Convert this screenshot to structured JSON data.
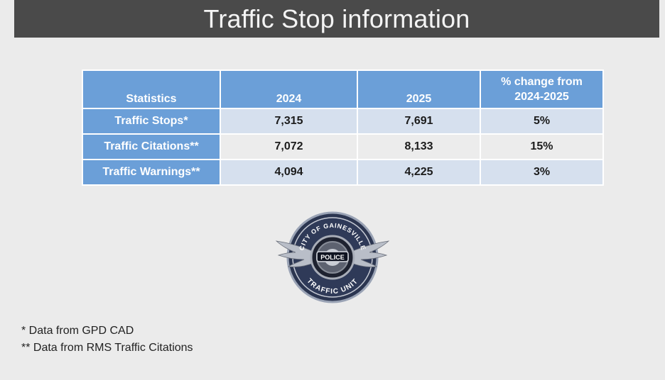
{
  "slide": {
    "title": "Traffic Stop information"
  },
  "table": {
    "headers": [
      "Statistics",
      "2024",
      "2025",
      "% change from 2024-2025"
    ],
    "rows": [
      {
        "label": "Traffic Stops*",
        "y2024": "7,315",
        "y2025": "7,691",
        "change": "5%"
      },
      {
        "label": "Traffic Citations**",
        "y2024": "7,072",
        "y2025": "8,133",
        "change": "15%"
      },
      {
        "label": "Traffic Warnings**",
        "y2024": "4,094",
        "y2025": "4,225",
        "change": "3%"
      }
    ]
  },
  "logo": {
    "top_text": "CITY OF GAINESVILLE",
    "center_text": "POLICE",
    "bottom_text": "TRAFFIC UNIT"
  },
  "footnotes": [
    "* Data from GPD CAD",
    "** Data from RMS Traffic Citations"
  ],
  "colors": {
    "title_bar": "#4a4a4a",
    "header_blue": "#6b9fd8",
    "row_light_blue": "#d6e0ee",
    "row_gray": "#ececec"
  }
}
